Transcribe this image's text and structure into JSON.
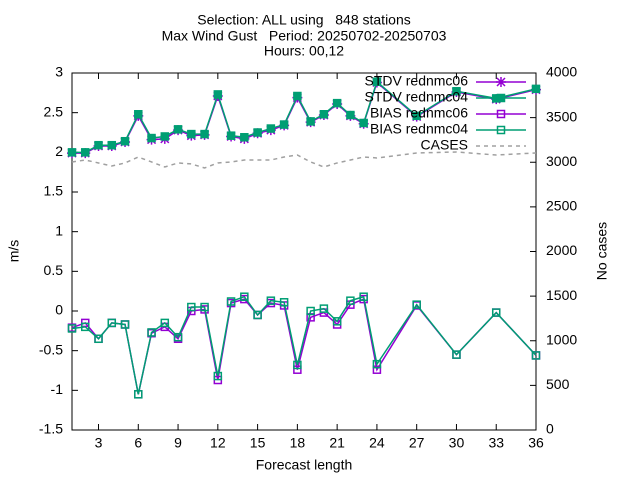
{
  "chart_data": {
    "type": "line",
    "title": [
      "Selection: ALL using   848 stations",
      "Max Wind Gust   Period: 20250702-20250703",
      "Hours: 00,12"
    ],
    "x_label": "Forecast length",
    "y_label": "m/s",
    "y2_label": "No cases",
    "x": [
      1,
      2,
      3,
      4,
      5,
      6,
      7,
      8,
      9,
      10,
      11,
      12,
      13,
      14,
      15,
      16,
      17,
      18,
      19,
      20,
      21,
      22,
      23,
      24,
      27,
      30,
      33,
      36
    ],
    "xlim": [
      1,
      36
    ],
    "xticks": [
      3,
      6,
      9,
      12,
      15,
      18,
      21,
      24,
      27,
      30,
      33,
      36
    ],
    "ylim": [
      -1.5,
      3
    ],
    "yticks": [
      -1.5,
      -1,
      -0.5,
      0,
      0.5,
      1,
      1.5,
      2,
      2.5,
      3
    ],
    "y2lim": [
      0,
      4000
    ],
    "y2ticks": [
      0,
      500,
      1000,
      1500,
      2000,
      2500,
      3000,
      3500,
      4000
    ],
    "grid": false,
    "legend": "top-right",
    "series": [
      {
        "name": "STDV rednmc06",
        "color": "#9400d3",
        "marker": "star",
        "values": [
          1.99,
          1.99,
          2.08,
          2.08,
          2.13,
          2.46,
          2.16,
          2.17,
          2.28,
          2.21,
          2.22,
          2.71,
          2.2,
          2.17,
          2.24,
          2.28,
          2.34,
          2.69,
          2.38,
          2.47,
          2.61,
          2.46,
          2.36,
          2.88,
          2.45,
          2.76,
          2.67,
          2.79
        ]
      },
      {
        "name": "STDV rednmc04",
        "color": "#009e73",
        "marker": "filled-square",
        "values": [
          2.0,
          2.0,
          2.09,
          2.09,
          2.14,
          2.48,
          2.18,
          2.2,
          2.29,
          2.23,
          2.23,
          2.73,
          2.21,
          2.19,
          2.25,
          2.3,
          2.35,
          2.71,
          2.39,
          2.48,
          2.62,
          2.47,
          2.37,
          2.89,
          2.46,
          2.77,
          2.68,
          2.8
        ]
      },
      {
        "name": "BIAS rednmc06",
        "color": "#9400d3",
        "marker": "square",
        "values": [
          -0.21,
          -0.15,
          -0.35,
          -0.15,
          -0.17,
          -1.05,
          -0.28,
          -0.2,
          -0.35,
          0.0,
          0.02,
          -0.87,
          0.1,
          0.15,
          -0.05,
          0.1,
          0.07,
          -0.74,
          -0.08,
          -0.02,
          -0.17,
          0.08,
          0.15,
          -0.74,
          0.07,
          -0.55,
          -0.02,
          -0.56
        ]
      },
      {
        "name": "BIAS rednmc04",
        "color": "#009e73",
        "marker": "square",
        "values": [
          -0.22,
          -0.2,
          -0.35,
          -0.15,
          -0.17,
          -1.05,
          -0.27,
          -0.15,
          -0.33,
          0.05,
          0.05,
          -0.82,
          0.12,
          0.18,
          -0.05,
          0.13,
          0.11,
          -0.68,
          0.0,
          0.03,
          -0.13,
          0.13,
          0.18,
          -0.67,
          0.08,
          -0.55,
          -0.02,
          -0.56
        ]
      },
      {
        "name": "CASES",
        "color": "#a0a0a0",
        "marker": "none",
        "dash": true,
        "axis": "y2",
        "values": [
          3003,
          3025,
          2992,
          2958,
          2992,
          3059,
          3003,
          2947,
          2992,
          2981,
          2936,
          2992,
          3003,
          3025,
          3025,
          3025,
          3059,
          3081,
          3003,
          2947,
          2992,
          3025,
          3059,
          3048,
          3104,
          3115,
          3081,
          3104
        ]
      }
    ]
  }
}
